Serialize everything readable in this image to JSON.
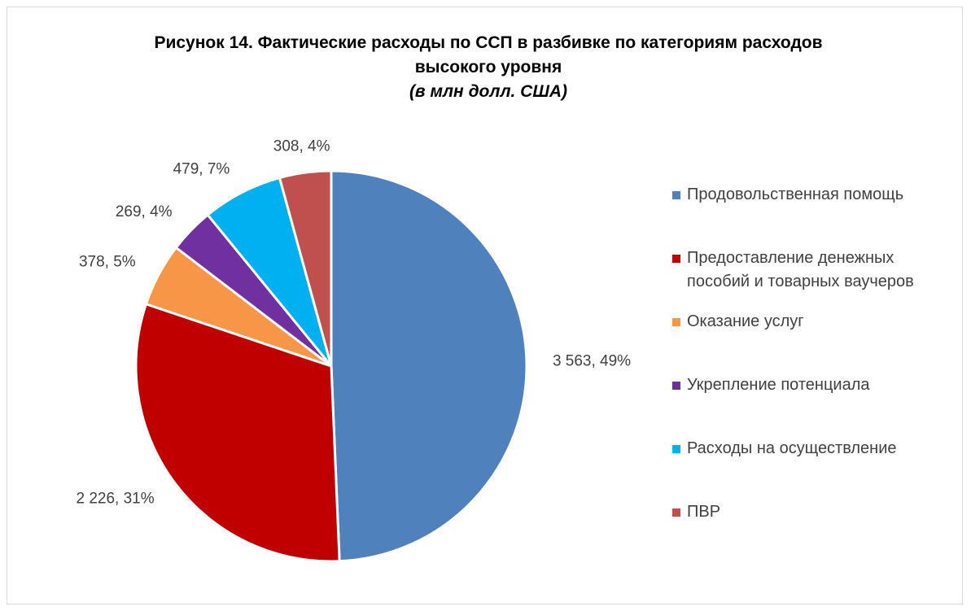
{
  "chart_data": {
    "type": "pie",
    "title": "Рисунок 14. Фактические расходы по ССП в разбивке по категориям расходов высокого уровня",
    "subtitle": "(в млн долл. США)",
    "categories": [
      "Продовольственная помощь",
      "Предоставление денежных пособий и товарных ваучеров",
      "Оказание услуг",
      "Укрепление потенциала",
      "Расходы на осуществление",
      "ПВР"
    ],
    "values": [
      3563,
      2226,
      378,
      269,
      479,
      308
    ],
    "value_labels": [
      "3 563, 49%",
      "2 226, 31%",
      "378, 5%",
      "269, 4%",
      "479, 7%",
      "308, 4%"
    ],
    "colors": [
      "#4f81bd",
      "#c00000",
      "#f79646",
      "#7030a0",
      "#00b0f0",
      "#c0504d"
    ],
    "legend": "right"
  }
}
